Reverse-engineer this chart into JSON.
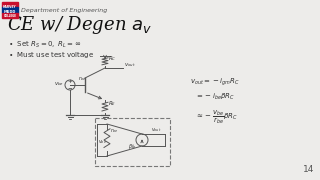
{
  "bg_color": "#edecea",
  "header_text": "Department of Engineering",
  "bullets": [
    "Set $R_S = 0,\\ R_L = \\infty$",
    "Must use test voltage"
  ],
  "equations": [
    "$v_{out} = -i_{gm}R_C$",
    "$= -i_{be}\\beta R_C$",
    "$\\approx -\\dfrac{v_{be}}{r_{be}}\\beta R_C$"
  ],
  "page_number": "14",
  "logo_colors": [
    "#c8102e",
    "#003087",
    "#c8102e"
  ],
  "lc": "#555555",
  "text_color": "#333333"
}
